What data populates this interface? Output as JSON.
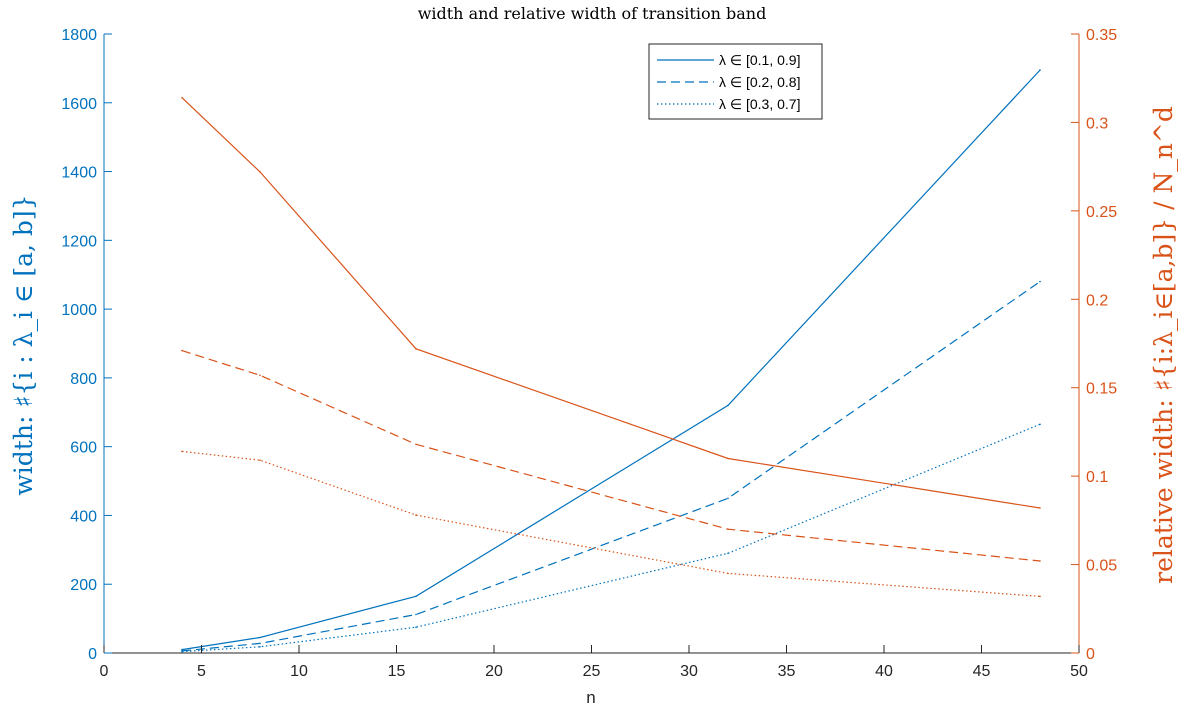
{
  "chart_data": {
    "type": "line",
    "title": "width and relative width of transition band",
    "xlabel": "n",
    "ylabel_left": "width: ♯{i : λ_i ∈ [a, b]}",
    "ylabel_right": "relative width: ♯{i:λ_i∈[a,b]} / N_n^d",
    "xlim": [
      0,
      50
    ],
    "xticks": [
      0,
      5,
      10,
      15,
      20,
      25,
      30,
      35,
      40,
      45,
      50
    ],
    "ylim_left": [
      0,
      1800
    ],
    "yticks_left": [
      0,
      200,
      400,
      600,
      800,
      1000,
      1200,
      1400,
      1600,
      1800
    ],
    "ylim_right": [
      0,
      0.35
    ],
    "yticks_right": [
      0,
      0.05,
      0.1,
      0.15,
      0.2,
      0.25,
      0.3,
      0.35
    ],
    "x": [
      4,
      8,
      16,
      32,
      48
    ],
    "colors": {
      "left": "#0072BD",
      "right": "#D95319"
    },
    "legend_position": "top-right",
    "series": [
      {
        "name": "λ ∈ [0.1, 0.9]",
        "axis": "left",
        "style": "solid",
        "values": [
          10,
          45,
          165,
          720,
          1695
        ]
      },
      {
        "name": "λ ∈ [0.2, 0.8]",
        "axis": "left",
        "style": "dashed",
        "values": [
          6,
          28,
          112,
          450,
          1080
        ]
      },
      {
        "name": "λ ∈ [0.3, 0.7]",
        "axis": "left",
        "style": "dotted",
        "values": [
          4,
          18,
          75,
          290,
          665
        ]
      },
      {
        "axis": "right",
        "style": "solid",
        "values": [
          0.314,
          0.272,
          0.172,
          0.11,
          0.082
        ]
      },
      {
        "axis": "right",
        "style": "dashed",
        "values": [
          0.171,
          0.157,
          0.118,
          0.07,
          0.052
        ]
      },
      {
        "axis": "right",
        "style": "dotted",
        "values": [
          0.114,
          0.109,
          0.078,
          0.045,
          0.032
        ]
      }
    ]
  }
}
